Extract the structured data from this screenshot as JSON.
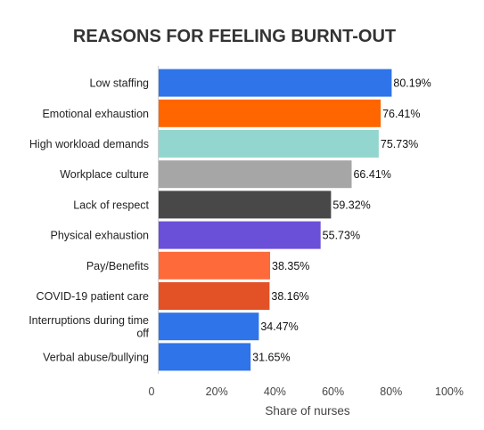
{
  "chart_data": {
    "type": "bar",
    "orientation": "horizontal",
    "title": "REASONS FOR FEELING BURNT-OUT",
    "xlabel": "Share of nurses",
    "ylabel": "",
    "xlim": [
      0,
      100
    ],
    "grid": false,
    "legend": "none",
    "x_ticks": [
      0,
      20,
      40,
      60,
      80,
      100
    ],
    "x_tick_labels": [
      "0",
      "20%",
      "40%",
      "60%",
      "80%",
      "100%"
    ],
    "categories": [
      "Low staffing",
      "Emotional exhaustion",
      "High workload demands",
      "Workplace culture",
      "Lack of respect",
      "Physical exhaustion",
      "Pay/Benefits",
      "COVID-19 patient care",
      "Interruptions during time off",
      "Verbal abuse/bullying"
    ],
    "category_lines": [
      [
        "Low staffing"
      ],
      [
        "Emotional exhaustion"
      ],
      [
        "High workload demands"
      ],
      [
        "Workplace culture"
      ],
      [
        "Lack of respect"
      ],
      [
        "Physical exhaustion"
      ],
      [
        "Pay/Benefits"
      ],
      [
        "COVID-19 patient care"
      ],
      [
        "Interruptions during time",
        "off"
      ],
      [
        "Verbal abuse/bullying"
      ]
    ],
    "values": [
      80.19,
      76.41,
      75.73,
      66.41,
      59.32,
      55.73,
      38.35,
      38.16,
      34.47,
      31.65
    ],
    "value_labels": [
      "80.19%",
      "76.41%",
      "75.73%",
      "66.41%",
      "59.32%",
      "55.73%",
      "38.35%",
      "38.16%",
      "34.47%",
      "31.65%"
    ],
    "colors": [
      "#2f74e8",
      "#ff6600",
      "#93d6cf",
      "#a6a6a6",
      "#484848",
      "#6a4fd8",
      "#ff6a3a",
      "#e35127",
      "#2f74e8",
      "#2f74e8"
    ]
  }
}
